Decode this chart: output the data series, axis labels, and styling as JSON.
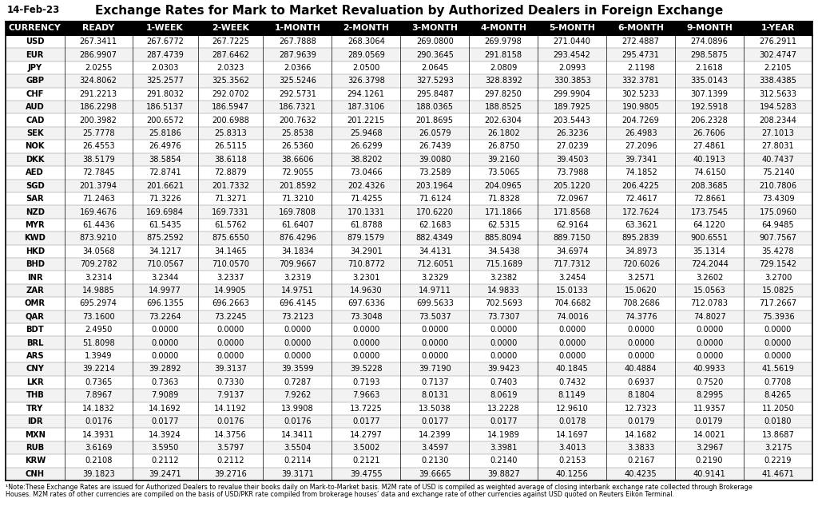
{
  "title": "Exchange Rates for Mark to Market Revaluation by Authorized Dealers in Foreign Exchange",
  "date": "14-Feb-23",
  "columns": [
    "CURRENCY",
    "READY",
    "1-WEEK",
    "2-WEEK",
    "1-MONTH",
    "2-MONTH",
    "3-MONTH",
    "4-MONTH",
    "5-MONTH",
    "6-MONTH",
    "9-MONTH",
    "1-YEAR"
  ],
  "rows": [
    [
      "USD",
      "267.3411",
      "267.6772",
      "267.7225",
      "267.7888",
      "268.3064",
      "269.0800",
      "269.9798",
      "271.0440",
      "272.4887",
      "274.0896",
      "276.2911"
    ],
    [
      "EUR",
      "286.9907",
      "287.4739",
      "287.6462",
      "287.9639",
      "289.0569",
      "290.3645",
      "291.8158",
      "293.4542",
      "295.4731",
      "298.5875",
      "302.4747"
    ],
    [
      "JPY",
      "2.0255",
      "2.0303",
      "2.0323",
      "2.0366",
      "2.0500",
      "2.0645",
      "2.0809",
      "2.0993",
      "2.1198",
      "2.1618",
      "2.2105"
    ],
    [
      "GBP",
      "324.8062",
      "325.2577",
      "325.3562",
      "325.5246",
      "326.3798",
      "327.5293",
      "328.8392",
      "330.3853",
      "332.3781",
      "335.0143",
      "338.4385"
    ],
    [
      "CHF",
      "291.2213",
      "291.8032",
      "292.0702",
      "292.5731",
      "294.1261",
      "295.8487",
      "297.8250",
      "299.9904",
      "302.5233",
      "307.1399",
      "312.5633"
    ],
    [
      "AUD",
      "186.2298",
      "186.5137",
      "186.5947",
      "186.7321",
      "187.3106",
      "188.0365",
      "188.8525",
      "189.7925",
      "190.9805",
      "192.5918",
      "194.5283"
    ],
    [
      "CAD",
      "200.3982",
      "200.6572",
      "200.6988",
      "200.7632",
      "201.2215",
      "201.8695",
      "202.6304",
      "203.5443",
      "204.7269",
      "206.2328",
      "208.2344"
    ],
    [
      "SEK",
      "25.7778",
      "25.8186",
      "25.8313",
      "25.8538",
      "25.9468",
      "26.0579",
      "26.1802",
      "26.3236",
      "26.4983",
      "26.7606",
      "27.1013"
    ],
    [
      "NOK",
      "26.4553",
      "26.4976",
      "26.5115",
      "26.5360",
      "26.6299",
      "26.7439",
      "26.8750",
      "27.0239",
      "27.2096",
      "27.4861",
      "27.8031"
    ],
    [
      "DKK",
      "38.5179",
      "38.5854",
      "38.6118",
      "38.6606",
      "38.8202",
      "39.0080",
      "39.2160",
      "39.4503",
      "39.7341",
      "40.1913",
      "40.7437"
    ],
    [
      "AED",
      "72.7845",
      "72.8741",
      "72.8879",
      "72.9055",
      "73.0466",
      "73.2589",
      "73.5065",
      "73.7988",
      "74.1852",
      "74.6150",
      "75.2140"
    ],
    [
      "SGD",
      "201.3794",
      "201.6621",
      "201.7332",
      "201.8592",
      "202.4326",
      "203.1964",
      "204.0965",
      "205.1220",
      "206.4225",
      "208.3685",
      "210.7806"
    ],
    [
      "SAR",
      "71.2463",
      "71.3226",
      "71.3271",
      "71.3210",
      "71.4255",
      "71.6124",
      "71.8328",
      "72.0967",
      "72.4617",
      "72.8661",
      "73.4309"
    ],
    [
      "NZD",
      "169.4676",
      "169.6984",
      "169.7331",
      "169.7808",
      "170.1331",
      "170.6220",
      "171.1866",
      "171.8568",
      "172.7624",
      "173.7545",
      "175.0960"
    ],
    [
      "MYR",
      "61.4436",
      "61.5435",
      "61.5762",
      "61.6407",
      "61.8788",
      "62.1683",
      "62.5315",
      "62.9164",
      "63.3621",
      "64.1220",
      "64.9485"
    ],
    [
      "KWD",
      "873.9210",
      "875.2592",
      "875.6550",
      "876.4296",
      "879.1579",
      "882.4349",
      "885.8094",
      "889.7150",
      "895.2839",
      "900.6551",
      "907.7567"
    ],
    [
      "HKD",
      "34.0568",
      "34.1217",
      "34.1465",
      "34.1834",
      "34.2901",
      "34.4131",
      "34.5438",
      "34.6974",
      "34.8973",
      "35.1314",
      "35.4278"
    ],
    [
      "BHD",
      "709.2782",
      "710.0567",
      "710.0570",
      "709.9667",
      "710.8772",
      "712.6051",
      "715.1689",
      "717.7312",
      "720.6026",
      "724.2044",
      "729.1542"
    ],
    [
      "INR",
      "3.2314",
      "3.2344",
      "3.2337",
      "3.2319",
      "3.2301",
      "3.2329",
      "3.2382",
      "3.2454",
      "3.2571",
      "3.2602",
      "3.2700"
    ],
    [
      "ZAR",
      "14.9885",
      "14.9977",
      "14.9905",
      "14.9751",
      "14.9630",
      "14.9711",
      "14.9833",
      "15.0133",
      "15.0620",
      "15.0563",
      "15.0825"
    ],
    [
      "OMR",
      "695.2974",
      "696.1355",
      "696.2663",
      "696.4145",
      "697.6336",
      "699.5633",
      "702.5693",
      "704.6682",
      "708.2686",
      "712.0783",
      "717.2667"
    ],
    [
      "QAR",
      "73.1600",
      "73.2264",
      "73.2245",
      "73.2123",
      "73.3048",
      "73.5037",
      "73.7307",
      "74.0016",
      "74.3776",
      "74.8027",
      "75.3936"
    ],
    [
      "BDT",
      "2.4950",
      "0.0000",
      "0.0000",
      "0.0000",
      "0.0000",
      "0.0000",
      "0.0000",
      "0.0000",
      "0.0000",
      "0.0000",
      "0.0000"
    ],
    [
      "BRL",
      "51.8098",
      "0.0000",
      "0.0000",
      "0.0000",
      "0.0000",
      "0.0000",
      "0.0000",
      "0.0000",
      "0.0000",
      "0.0000",
      "0.0000"
    ],
    [
      "ARS",
      "1.3949",
      "0.0000",
      "0.0000",
      "0.0000",
      "0.0000",
      "0.0000",
      "0.0000",
      "0.0000",
      "0.0000",
      "0.0000",
      "0.0000"
    ],
    [
      "CNY",
      "39.2214",
      "39.2892",
      "39.3137",
      "39.3599",
      "39.5228",
      "39.7190",
      "39.9423",
      "40.1845",
      "40.4884",
      "40.9933",
      "41.5619"
    ],
    [
      "LKR",
      "0.7365",
      "0.7363",
      "0.7330",
      "0.7287",
      "0.7193",
      "0.7137",
      "0.7403",
      "0.7432",
      "0.6937",
      "0.7520",
      "0.7708"
    ],
    [
      "THB",
      "7.8967",
      "7.9089",
      "7.9137",
      "7.9262",
      "7.9663",
      "8.0131",
      "8.0619",
      "8.1149",
      "8.1804",
      "8.2995",
      "8.4265"
    ],
    [
      "TRY",
      "14.1832",
      "14.1692",
      "14.1192",
      "13.9908",
      "13.7225",
      "13.5038",
      "13.2228",
      "12.9610",
      "12.7323",
      "11.9357",
      "11.2050"
    ],
    [
      "IDR",
      "0.0176",
      "0.0177",
      "0.0176",
      "0.0176",
      "0.0177",
      "0.0177",
      "0.0177",
      "0.0178",
      "0.0179",
      "0.0179",
      "0.0180"
    ],
    [
      "MXN",
      "14.3931",
      "14.3924",
      "14.3756",
      "14.3411",
      "14.2797",
      "14.2399",
      "14.1989",
      "14.1697",
      "14.1682",
      "14.0021",
      "13.8687"
    ],
    [
      "RUB",
      "3.6169",
      "3.5950",
      "3.5797",
      "3.5504",
      "3.5002",
      "3.4597",
      "3.3981",
      "3.4013",
      "3.3833",
      "3.2967",
      "3.2175"
    ],
    [
      "KRW",
      "0.2108",
      "0.2112",
      "0.2112",
      "0.2114",
      "0.2121",
      "0.2130",
      "0.2140",
      "0.2153",
      "0.2167",
      "0.2190",
      "0.2219"
    ],
    [
      "CNH",
      "39.1823",
      "39.2471",
      "39.2716",
      "39.3171",
      "39.4755",
      "39.6665",
      "39.8827",
      "40.1256",
      "40.4235",
      "40.9141",
      "41.4671"
    ]
  ],
  "footnote_line1": "¹Note:These Exchange Rates are issued for Authorized Dealers to revalue their books daily on Mark-to-Market basis. M2M rate of USD is compiled as weighted average of closing interbank exchange rate collected through Brokerage",
  "footnote_line2": "Houses. M2M rates of other currencies are compiled on the basis of USD/PKR rate compiled from brokerage houses’ data and exchange rate of other currencies against USD quoted on Reuters Eikon Terminal.",
  "header_bg": "#000000",
  "header_text": "#ffffff",
  "title_fontsize": 11,
  "header_fontsize": 7.8,
  "data_fontsize": 7.2,
  "date_fontsize": 8.5,
  "footnote_fontsize": 5.8
}
